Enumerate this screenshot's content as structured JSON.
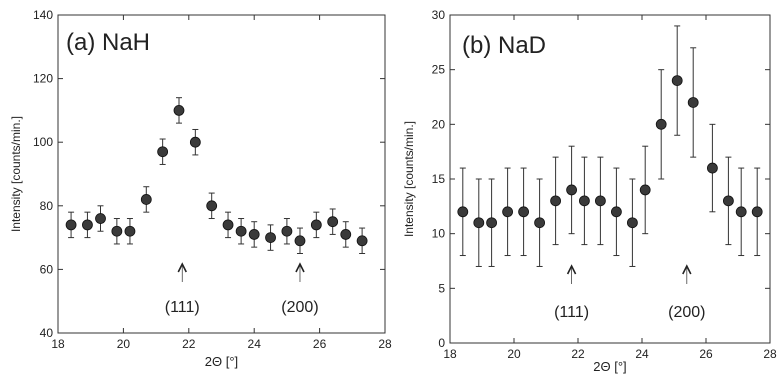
{
  "chart_data": [
    {
      "type": "scatter",
      "title": "(a) NaH",
      "xlabel": "2Θ [°]",
      "ylabel": "Intensity [counts/min.]",
      "xlim": [
        18,
        28
      ],
      "ylim": [
        40,
        140
      ],
      "xticks": [
        18,
        20,
        22,
        24,
        26,
        28
      ],
      "yticks": [
        40,
        60,
        80,
        100,
        120,
        140
      ],
      "grid": false,
      "series": [
        {
          "x": [
            18.4,
            18.9,
            19.3,
            19.8,
            20.2,
            20.7,
            21.2,
            21.7,
            22.2,
            22.7,
            23.2,
            23.6,
            24.0,
            24.5,
            25.0,
            25.4,
            25.9,
            26.4,
            26.8,
            27.3
          ],
          "y": [
            74,
            74,
            76,
            72,
            72,
            82,
            97,
            110,
            100,
            80,
            74,
            72,
            71,
            70,
            72,
            69,
            74,
            75,
            71,
            69
          ],
          "err": [
            4,
            4,
            4,
            4,
            4,
            4,
            4,
            4,
            4,
            4,
            4,
            4,
            4,
            4,
            4,
            4,
            4,
            4,
            4,
            4
          ]
        }
      ],
      "annotations": [
        {
          "label": "(111)",
          "x": 21.8
        },
        {
          "label": "(200)",
          "x": 25.4
        }
      ]
    },
    {
      "type": "scatter",
      "title": "(b) NaD",
      "xlabel": "2Θ [°]",
      "ylabel": "Intensity [counts/min.]",
      "xlim": [
        18,
        28
      ],
      "ylim": [
        0,
        30
      ],
      "xticks": [
        18,
        20,
        22,
        24,
        26,
        28
      ],
      "yticks": [
        0,
        5,
        10,
        15,
        20,
        25,
        30
      ],
      "grid": false,
      "series": [
        {
          "x": [
            18.4,
            18.9,
            19.3,
            19.8,
            20.3,
            20.8,
            21.3,
            21.8,
            22.2,
            22.7,
            23.2,
            23.7,
            24.1,
            24.6,
            25.1,
            25.6,
            26.2,
            26.7,
            27.1,
            27.6
          ],
          "y": [
            12,
            11,
            11,
            12,
            12,
            11,
            13,
            14,
            13,
            13,
            12,
            11,
            14,
            20,
            24,
            22,
            16,
            13,
            12,
            12
          ],
          "err": [
            4,
            4,
            4,
            4,
            4,
            4,
            4,
            4,
            4,
            4,
            4,
            4,
            4,
            5,
            5,
            5,
            4,
            4,
            4,
            4
          ]
        }
      ],
      "annotations": [
        {
          "label": "(111)",
          "x": 21.8
        },
        {
          "label": "(200)",
          "x": 25.4
        }
      ]
    }
  ]
}
